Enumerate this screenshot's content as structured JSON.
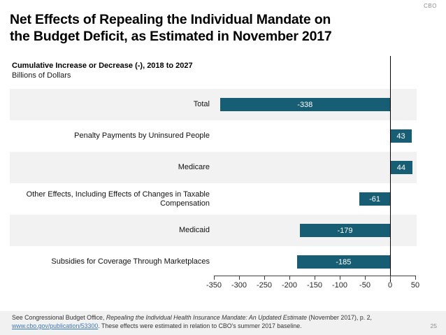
{
  "page": {
    "brand": "CBO",
    "page_number": "25",
    "title_line1": "Net Effects of Repealing the Individual Mandate on",
    "title_line2": "the Budget Deficit, as Estimated in November 2017",
    "subtitle": "Cumulative Increase or Decrease (-), 2018 to 2027",
    "units": "Billions of Dollars"
  },
  "chart_data": {
    "type": "bar",
    "orientation": "horizontal",
    "title": "Net Effects of Repealing the Individual Mandate on the Budget Deficit, as Estimated in November 2017",
    "subtitle": "Cumulative Increase or Decrease (-), 2018 to 2027",
    "ylabel": "Billions of Dollars",
    "categories": [
      "Total",
      "Penalty Payments by Uninsured People",
      "Medicare",
      "Other Effects, Including Effects of Changes in Taxable Compensation",
      "Medicaid",
      "Subsidies for Coverage Through Marketplaces"
    ],
    "values": [
      -338,
      43,
      44,
      -61,
      -179,
      -185
    ],
    "value_labels": [
      "-338",
      "43",
      "44",
      "-61",
      "-179",
      "-185"
    ],
    "xlim": [
      -350,
      50
    ],
    "x_ticks": [
      -350,
      -300,
      -250,
      -200,
      -150,
      -100,
      -50,
      0,
      50
    ],
    "grid": false,
    "bar_color": "#175e74",
    "stripe_color": "#f2f2f2",
    "value_label_color": "#ffffff"
  },
  "footer": {
    "text_before_italic": "See Congressional Budget Office, ",
    "italic_text": "Repealing the Individual Health Insurance Mandate: An Updated Estimate",
    "text_after_italic": " (November 2017), p. 2, ",
    "link_text": "www.cbo.gov/publication/53300",
    "text_after_link": ". These effects were estimated in relation to CBO's summer 2017 baseline."
  }
}
